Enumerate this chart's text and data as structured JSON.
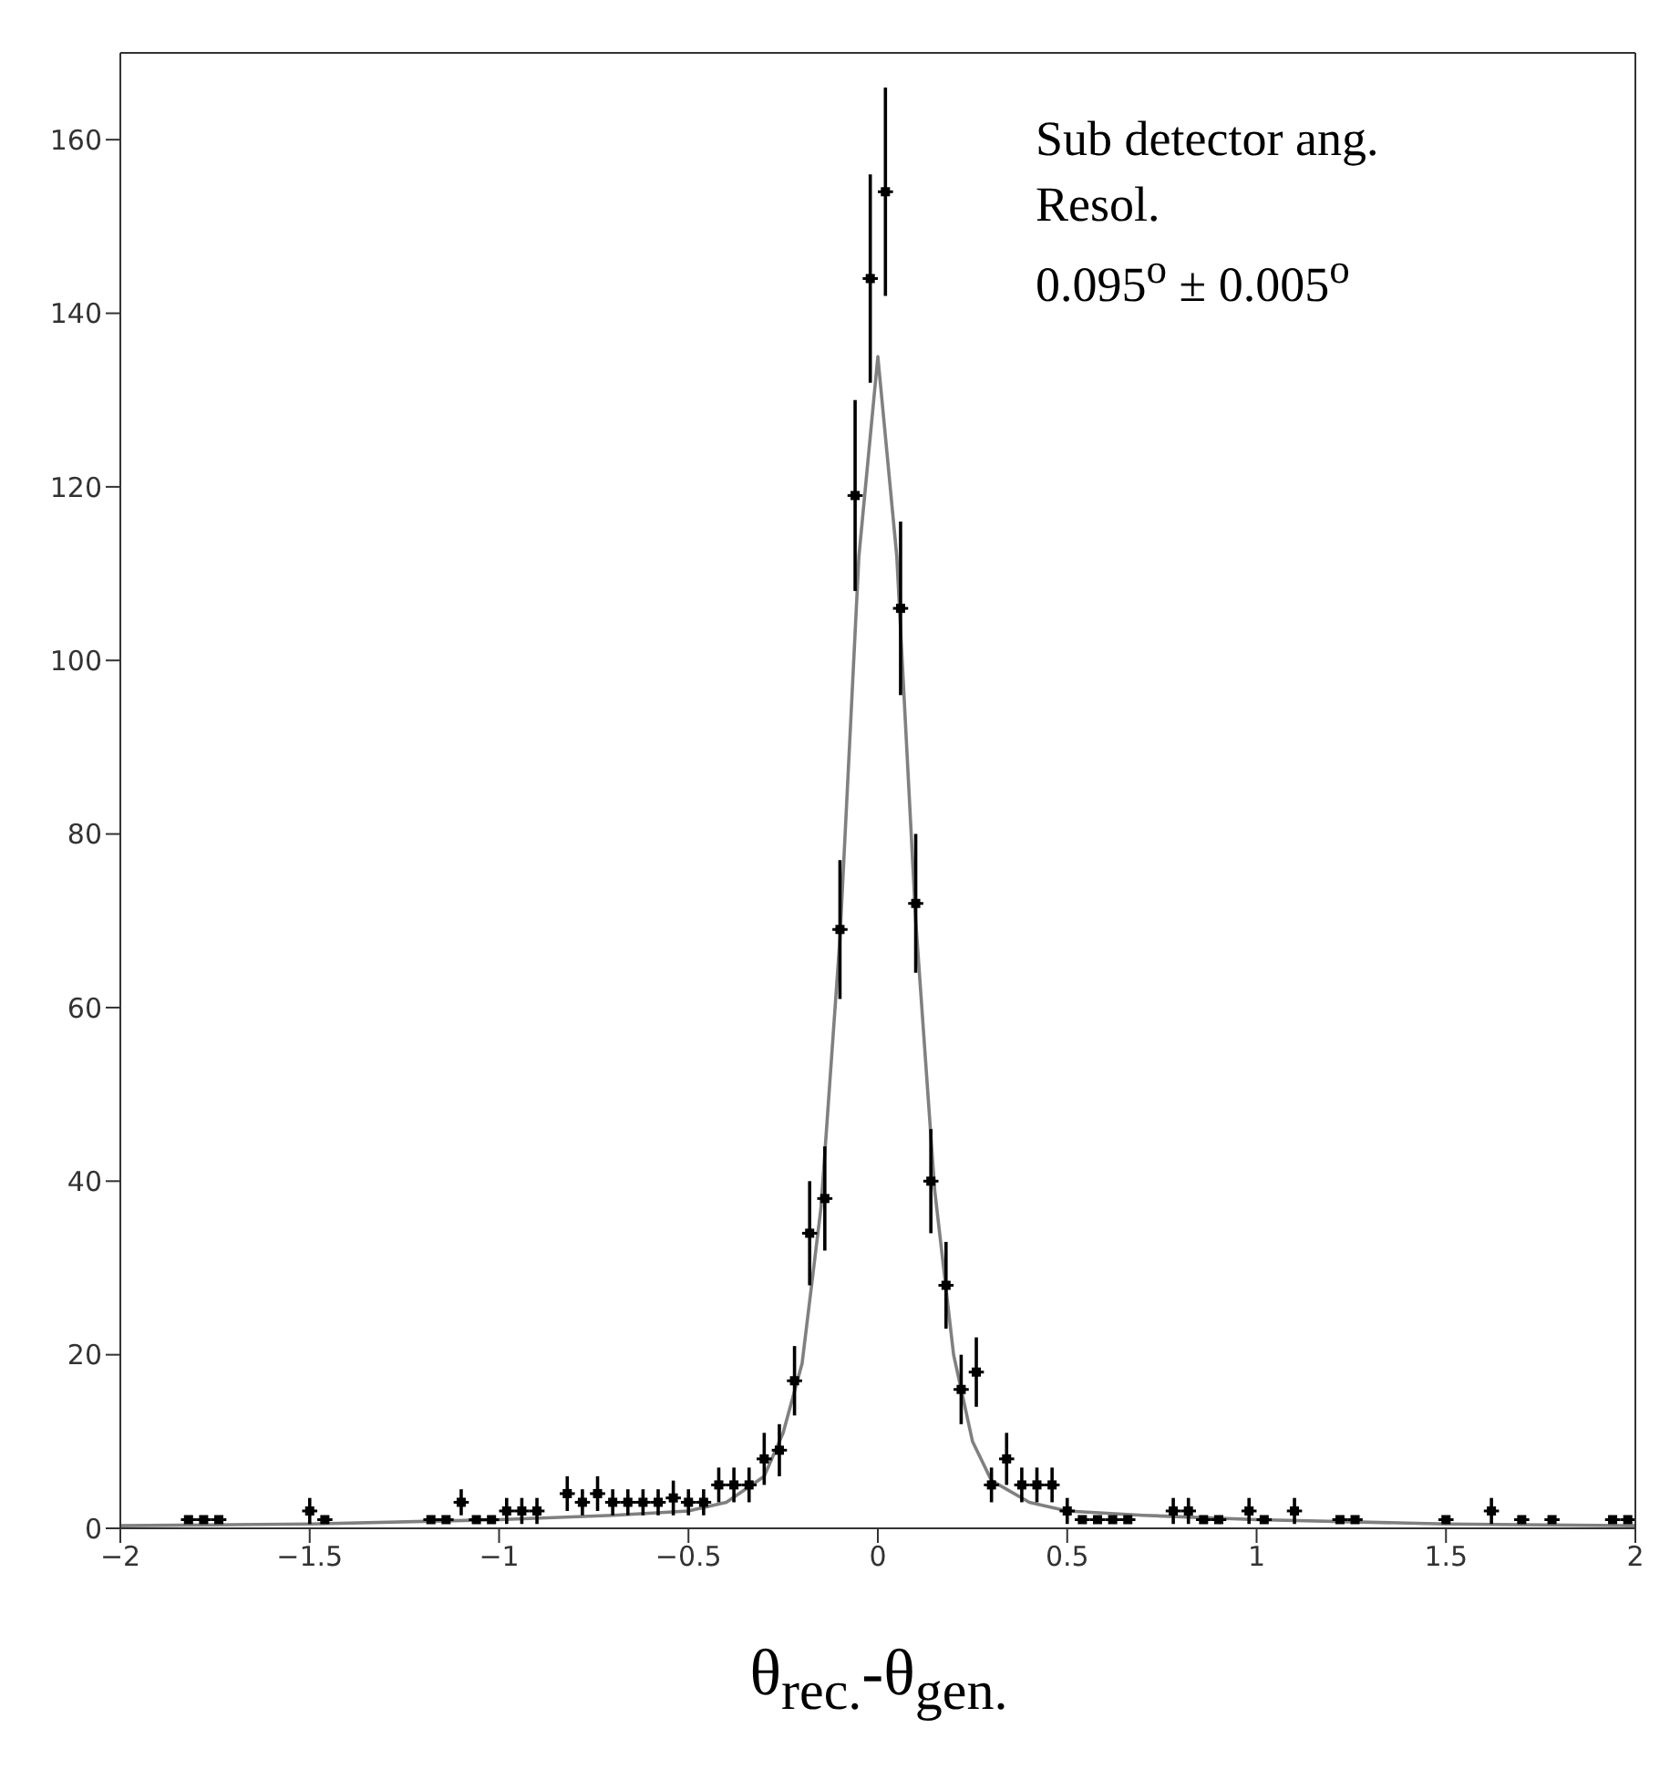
{
  "chart_data": {
    "type": "scatter",
    "xlabel": "θ$_{rec.}$-θ$_{gen.}$",
    "annotations": [
      "Sub detector ang.\nResol.\n0.095$^{o}$ ± 0.005$^{o}$"
    ],
    "xlim": [
      -2,
      2
    ],
    "xticks": [
      -2,
      -1.5,
      -1,
      -0.5,
      0,
      0.5,
      1,
      1.5,
      2
    ],
    "ylim": [
      0,
      170
    ],
    "yticks": [
      0,
      20,
      40,
      60,
      80,
      100,
      120,
      140,
      160
    ],
    "marker": "none",
    "series": [
      {
        "type": "scatter",
        "color": "#000000",
        "marker": "square",
        "x": [
          -1.82,
          -1.78,
          -1.74,
          -1.5,
          -1.46,
          -1.18,
          -1.14,
          -1.1,
          -1.06,
          -1.02,
          -0.98,
          -0.94,
          -0.9,
          -0.82,
          -0.78,
          -0.74,
          -0.7,
          -0.66,
          -0.62,
          -0.58,
          -0.54,
          -0.5,
          -0.46,
          -0.42,
          -0.38,
          -0.34,
          -0.3,
          -0.26,
          -0.22,
          -0.18,
          -0.14,
          -0.1,
          -0.06,
          -0.02,
          0.02,
          0.06,
          0.1,
          0.14,
          0.18,
          0.22,
          0.26,
          0.3,
          0.34,
          0.38,
          0.42,
          0.46,
          0.5,
          0.54,
          0.58,
          0.62,
          0.66,
          0.78,
          0.82,
          0.86,
          0.9,
          0.98,
          1.02,
          1.1,
          1.22,
          1.26,
          1.5,
          1.62,
          1.7,
          1.78,
          1.94,
          1.98
        ],
        "values": [
          1,
          1,
          1,
          2,
          1,
          1,
          1,
          3,
          1,
          1,
          2,
          2,
          2,
          4,
          3,
          4,
          3,
          3,
          3,
          3,
          3.5,
          3,
          3,
          5,
          5,
          5,
          8,
          9,
          17,
          34,
          38,
          69,
          119,
          144,
          154,
          106,
          72,
          40,
          28,
          16,
          18,
          5,
          8,
          5,
          5,
          5,
          2,
          1,
          1,
          1,
          1,
          2,
          2,
          1,
          1,
          2,
          1,
          2,
          1,
          1,
          1,
          2,
          1,
          1,
          1,
          1
        ],
        "errors": [
          null,
          null,
          null,
          1.5,
          null,
          null,
          null,
          1.5,
          null,
          null,
          1.5,
          1.5,
          1.5,
          2,
          1.5,
          2,
          1.5,
          1.5,
          1.5,
          1.5,
          2,
          1.5,
          1.5,
          2,
          2,
          2,
          3,
          3,
          4,
          6,
          6,
          8,
          11,
          12,
          12,
          10,
          8,
          6,
          5,
          4,
          4,
          2,
          3,
          2,
          2,
          2,
          1.5,
          null,
          null,
          null,
          null,
          1.5,
          1.5,
          null,
          null,
          1.5,
          null,
          1.5,
          null,
          null,
          null,
          1.5,
          null,
          null,
          null,
          null
        ],
        "xerrors": [
          0.02,
          0.02,
          0.02,
          0.02,
          0.02,
          0.02,
          0.02,
          0.02,
          0.02,
          0.02,
          0.02,
          0.02,
          0.02,
          0.02,
          0.02,
          0.02,
          0.02,
          0.02,
          0.02,
          0.02,
          0.02,
          0.02,
          0.02,
          0.02,
          0.02,
          0.02,
          0.02,
          0.02,
          0.02,
          0.02,
          0.02,
          0.02,
          0.02,
          0.02,
          0.02,
          0.02,
          0.02,
          0.02,
          0.02,
          0.02,
          0.02,
          0.02,
          0.02,
          0.02,
          0.02,
          0.02,
          0.02,
          0.02,
          0.02,
          0.02,
          0.02,
          0.02,
          0.02,
          0.02,
          0.02,
          0.02,
          0.02,
          0.02,
          0.02,
          0.02,
          0.02,
          0.02,
          0.02,
          0.02,
          0.02,
          0.02
        ]
      },
      {
        "type": "line",
        "color": "#808080",
        "x": [
          -2,
          -1.5,
          -1,
          -0.7,
          -0.5,
          -0.4,
          -0.3,
          -0.25,
          -0.2,
          -0.15,
          -0.1,
          -0.05,
          0,
          0.05,
          0.1,
          0.15,
          0.2,
          0.25,
          0.3,
          0.4,
          0.5,
          0.7,
          1,
          1.5,
          2
        ],
        "values": [
          0.3,
          0.5,
          1,
          1.5,
          2,
          3,
          6,
          11,
          19,
          37,
          68,
          112,
          135,
          112,
          70,
          39,
          20,
          10,
          5.5,
          3,
          2,
          1.5,
          1,
          0.5,
          0.3
        ]
      }
    ]
  }
}
